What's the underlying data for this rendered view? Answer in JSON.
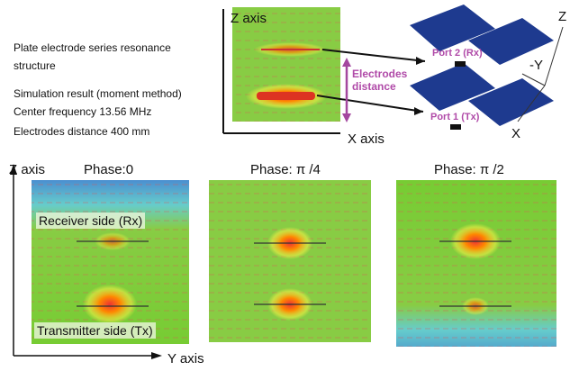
{
  "top": {
    "z_axis": "Z axis",
    "x_axis": "X axis",
    "description": [
      "Plate electrode series resonance structure",
      "Simulation result (moment method)",
      "Center frequency 13.56  MHz",
      "Electrodes distance 400 mm"
    ],
    "model": {
      "port_rx": "Port 2 (Rx)",
      "port_tx": "Port 1 (Tx)",
      "distance": "Electrodes distance",
      "axis_z": "Z",
      "axis_y": "-Y",
      "axis_x": "X"
    }
  },
  "bottom": {
    "z_axis": "Z axis",
    "y_axis": "Y axis",
    "panels": [
      {
        "phase": "Phase:0",
        "receiver": "Receiver side (Rx)",
        "transmitter": "Transmitter side (Tx)"
      },
      {
        "phase": "Phase: π /4"
      },
      {
        "phase": "Phase: π /2"
      }
    ]
  }
}
